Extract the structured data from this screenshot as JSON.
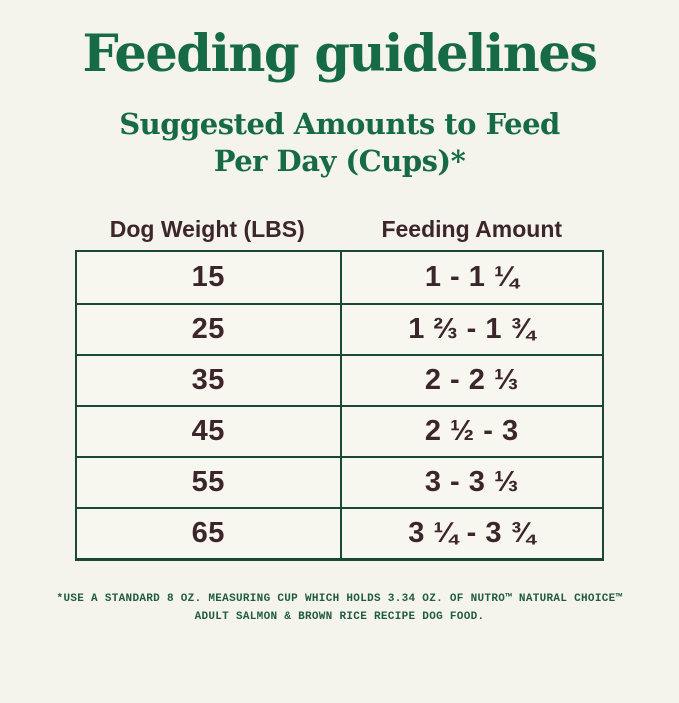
{
  "page": {
    "title": "Feeding guidelines",
    "subtitle_line1": "Suggested Amounts to Feed",
    "subtitle_line2": "Per Day (Cups)*"
  },
  "table": {
    "columns": [
      "Dog Weight (LBS)",
      "Feeding Amount"
    ],
    "rows": [
      {
        "weight": "15",
        "amount": "1 - 1 ¼"
      },
      {
        "weight": "25",
        "amount": "1 ⅔ - 1 ¾"
      },
      {
        "weight": "35",
        "amount": "2 - 2 ⅓"
      },
      {
        "weight": "45",
        "amount": "2 ½ - 3"
      },
      {
        "weight": "55",
        "amount": "3 - 3 ⅓"
      },
      {
        "weight": "65",
        "amount": "3 ¼ - 3 ¾"
      }
    ]
  },
  "footnote": {
    "line1": "*USE A STANDARD 8 OZ. MEASURING CUP WHICH HOLDS 3.34 OZ. OF NUTRO™ NATURAL CHOICE™",
    "line2": "ADULT SALMON & BROWN RICE RECIPE DOG FOOD."
  },
  "colors": {
    "background": "#F5F4EC",
    "heading_green": "#166B44",
    "table_border_green": "#1B4736",
    "text_dark_brown": "#3D262B",
    "footnote_green": "#1F5B40"
  },
  "chart_data": {
    "type": "table",
    "title": "Feeding guidelines",
    "subtitle": "Suggested Amounts to Feed Per Day (Cups)*",
    "columns": [
      "Dog Weight (LBS)",
      "Feeding Amount"
    ],
    "rows": [
      [
        "15",
        "1 - 1 ¼"
      ],
      [
        "25",
        "1 ⅔ - 1 ¾"
      ],
      [
        "35",
        "2 - 2 ⅓"
      ],
      [
        "45",
        "2 ½ - 3"
      ],
      [
        "55",
        "3 - 3 ⅓"
      ],
      [
        "65",
        "3 ¼ - 3 ¾"
      ]
    ],
    "numeric_rows": [
      {
        "weight_lbs": 15,
        "cups_min": 1.0,
        "cups_max": 1.25
      },
      {
        "weight_lbs": 25,
        "cups_min": 1.67,
        "cups_max": 1.75
      },
      {
        "weight_lbs": 35,
        "cups_min": 2.0,
        "cups_max": 2.33
      },
      {
        "weight_lbs": 45,
        "cups_min": 2.5,
        "cups_max": 3.0
      },
      {
        "weight_lbs": 55,
        "cups_min": 3.0,
        "cups_max": 3.33
      },
      {
        "weight_lbs": 65,
        "cups_min": 3.25,
        "cups_max": 3.75
      }
    ],
    "footnote": "*USE A STANDARD 8 OZ. MEASURING CUP WHICH HOLDS 3.34 OZ. OF NUTRO™ NATURAL CHOICE™ ADULT SALMON & BROWN RICE RECIPE DOG FOOD."
  }
}
